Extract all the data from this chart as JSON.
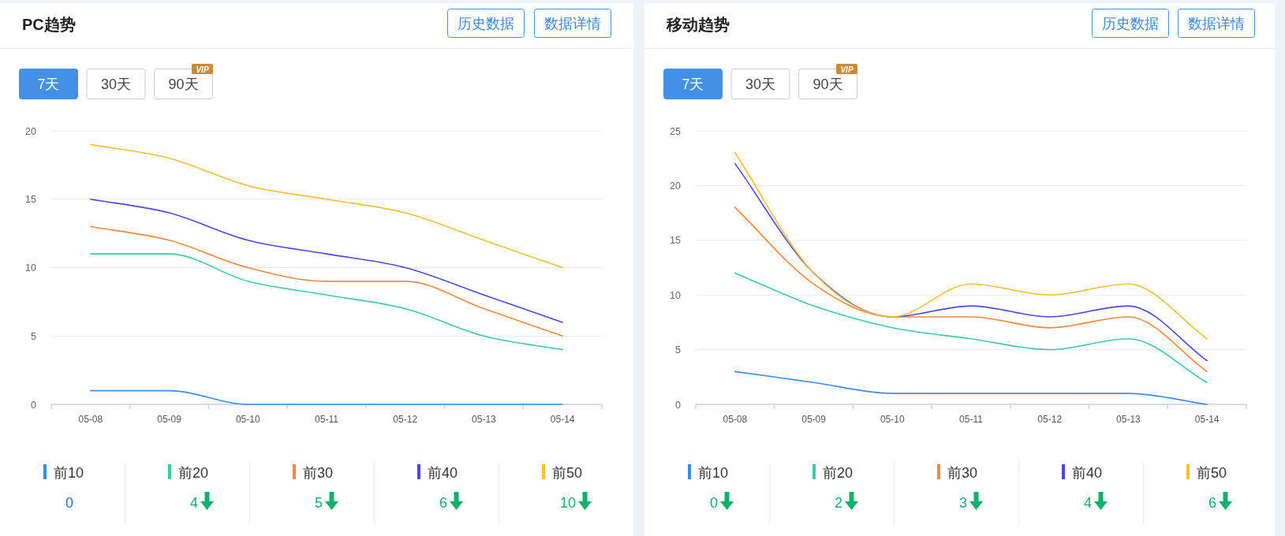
{
  "chart_data": [
    {
      "type": "line",
      "title": "PC趋势",
      "categories": [
        "05-08",
        "05-09",
        "05-10",
        "05-11",
        "05-12",
        "05-13",
        "05-14"
      ],
      "series": [
        {
          "name": "前10",
          "color": "#3d8af7",
          "values": [
            1,
            1,
            0,
            0,
            0,
            0,
            0
          ]
        },
        {
          "name": "前20",
          "color": "#3ccca4",
          "values": [
            11,
            11,
            9,
            8,
            7,
            5,
            4
          ]
        },
        {
          "name": "前30",
          "color": "#f5883c",
          "values": [
            13,
            12,
            10,
            9,
            9,
            7,
            5
          ]
        },
        {
          "name": "前40",
          "color": "#4b49e6",
          "values": [
            15,
            14,
            12,
            11,
            10,
            8,
            6
          ]
        },
        {
          "name": "前50",
          "color": "#fbc02d",
          "values": [
            19,
            18,
            16,
            15,
            14,
            12,
            10
          ]
        }
      ],
      "ylim": [
        0,
        20
      ],
      "yticks": [
        0,
        5,
        10,
        15,
        20
      ],
      "grid": "y",
      "legend": "bottom",
      "annotations": [
        "历史数据",
        "数据详情",
        "7天",
        "30天",
        "90天",
        "VIP",
        "0",
        "4",
        "5",
        "6",
        "10"
      ]
    },
    {
      "type": "line",
      "title": "移动趋势",
      "categories": [
        "05-08",
        "05-09",
        "05-10",
        "05-11",
        "05-12",
        "05-13",
        "05-14"
      ],
      "series": [
        {
          "name": "前10",
          "color": "#3d8af7",
          "values": [
            3,
            2,
            1,
            1,
            1,
            1,
            0
          ]
        },
        {
          "name": "前20",
          "color": "#3ccca4",
          "values": [
            12,
            9,
            7,
            6,
            5,
            6,
            2
          ]
        },
        {
          "name": "前30",
          "color": "#f5883c",
          "values": [
            18,
            11,
            8,
            8,
            7,
            8,
            3
          ]
        },
        {
          "name": "前40",
          "color": "#4b49e6",
          "values": [
            22,
            12,
            8,
            9,
            8,
            9,
            4
          ]
        },
        {
          "name": "前50",
          "color": "#fbc02d",
          "values": [
            23,
            12,
            8,
            11,
            10,
            11,
            6
          ]
        }
      ],
      "ylim": [
        0,
        25
      ],
      "yticks": [
        0,
        5,
        10,
        15,
        20,
        25
      ],
      "grid": "y",
      "legend": "bottom",
      "annotations": [
        "历史数据",
        "数据详情",
        "7天",
        "30天",
        "90天",
        "VIP",
        "0",
        "2",
        "3",
        "4",
        "6"
      ]
    }
  ]
}
